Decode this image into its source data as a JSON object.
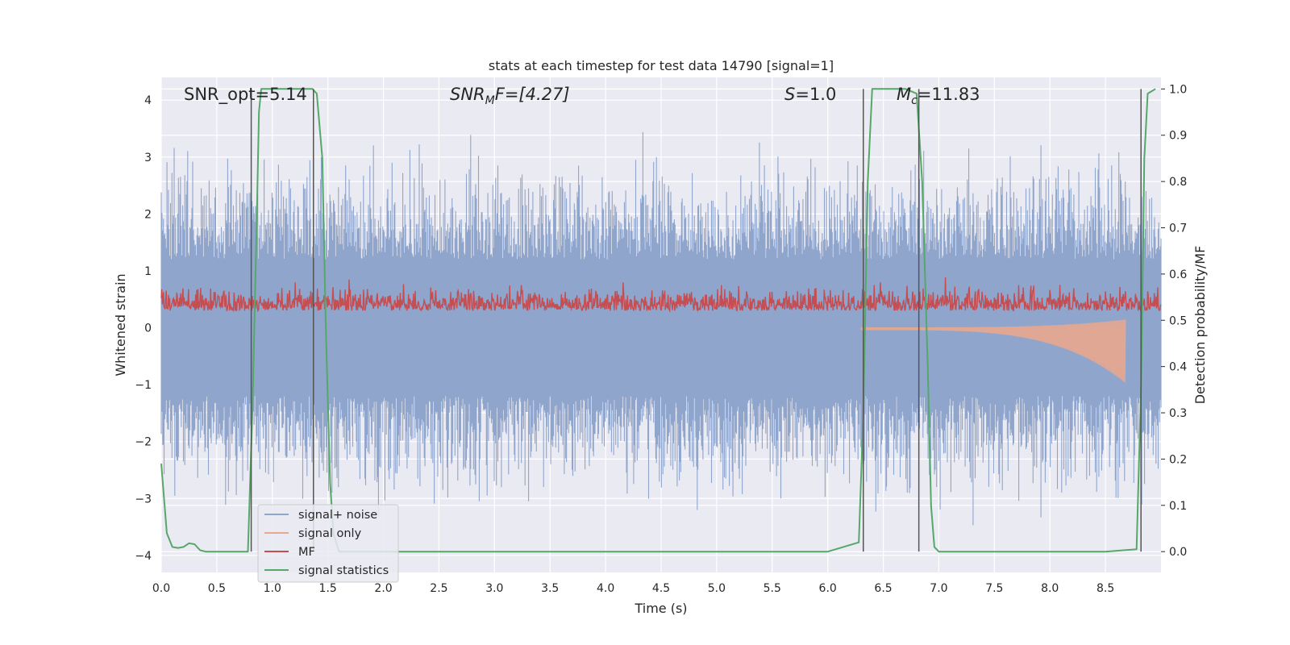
{
  "chart_data": {
    "type": "line",
    "title": "stats at each timestep for test data 14790 [signal=1]",
    "xlabel": "Time (s)",
    "ylabel_left": "Whitened strain",
    "ylabel_right": "Detection probability/MF",
    "xlim": [
      0.0,
      9.0
    ],
    "ylim_left": [
      -4.3,
      4.4
    ],
    "ylim_right": [
      -0.045,
      1.025
    ],
    "x_ticks": [
      "0.0",
      "0.5",
      "1.0",
      "1.5",
      "2.0",
      "2.5",
      "3.0",
      "3.5",
      "4.0",
      "4.5",
      "5.0",
      "5.5",
      "6.0",
      "6.5",
      "7.0",
      "7.5",
      "8.0",
      "8.5"
    ],
    "y_ticks_left": [
      "4",
      "3",
      "2",
      "1",
      "0",
      "−1",
      "−2",
      "−3",
      "−4"
    ],
    "y_ticks_right": [
      "1.0",
      "0.9",
      "0.8",
      "0.7",
      "0.6",
      "0.5",
      "0.4",
      "0.3",
      "0.2",
      "0.1",
      "0.0"
    ],
    "grid": true,
    "legend_position": "lower-left",
    "annotations": {
      "snr_opt": "SNR_opt=5.14",
      "snr_mf_main": "SNR",
      "snr_mf_sub": "M",
      "snr_mf_rest": "F=[4.27]",
      "s_main": "S",
      "s_rest": "=1.0",
      "mc_main": "M",
      "mc_sub": "c",
      "mc_rest": "=11.83"
    },
    "series": [
      {
        "name": "signal+ noise",
        "color": "#8fa5cc",
        "range_min": -3.5,
        "range_max": 4.0
      },
      {
        "name": "signal only",
        "color": "#e8a78e",
        "chirp_start": 6.3,
        "chirp_end": 8.68,
        "min_value": -0.93
      },
      {
        "name": "MF",
        "color": "#c44e52",
        "range_min": 0.0,
        "range_max": 1.0
      },
      {
        "name": "signal statistics",
        "color": "#55a868",
        "x": [
          0.0,
          0.05,
          0.1,
          0.15,
          0.2,
          0.25,
          0.3,
          0.35,
          0.4,
          0.45,
          0.5,
          0.6,
          0.7,
          0.78,
          0.82,
          0.86,
          0.88,
          0.9,
          1.0,
          1.1,
          1.2,
          1.3,
          1.36,
          1.4,
          1.45,
          1.48,
          1.52,
          1.55,
          1.6,
          2.0,
          3.0,
          4.0,
          5.0,
          6.0,
          6.28,
          6.32,
          6.36,
          6.4,
          6.5,
          6.6,
          6.7,
          6.8,
          6.85,
          6.9,
          6.93,
          6.96,
          7.0,
          7.5,
          8.0,
          8.5,
          8.78,
          8.82,
          8.85,
          8.88,
          8.95
        ],
        "y": [
          0.19,
          0.04,
          0.01,
          0.008,
          0.01,
          0.018,
          0.016,
          0.003,
          0.0,
          0.0,
          0.0,
          0.0,
          0.0,
          0.0,
          0.3,
          0.72,
          0.95,
          1.0,
          1.0,
          1.0,
          1.0,
          1.0,
          1.0,
          0.99,
          0.85,
          0.5,
          0.15,
          0.04,
          0.0,
          0.0,
          0.0,
          0.0,
          0.0,
          0.0,
          0.02,
          0.3,
          0.8,
          1.0,
          1.0,
          1.0,
          1.0,
          0.99,
          0.8,
          0.4,
          0.1,
          0.01,
          0.0,
          0.0,
          0.0,
          0.0,
          0.005,
          0.35,
          0.85,
          0.99,
          1.0
        ]
      }
    ],
    "vertical_lines": [
      0.81,
      1.37,
      6.32,
      6.82,
      8.82
    ]
  }
}
